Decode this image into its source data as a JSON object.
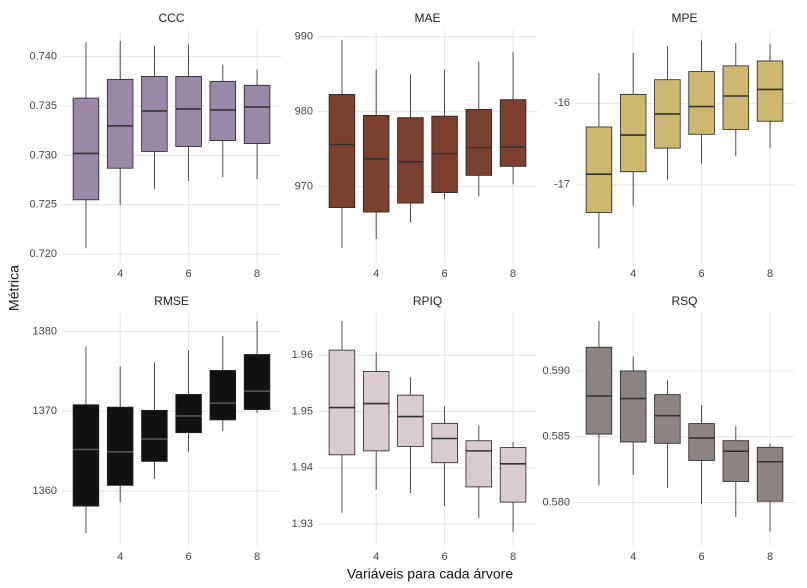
{
  "ylabel": "Métrica",
  "xlabel": "Variáveis para cada árvore",
  "chart_data": [
    {
      "type": "box",
      "title": "CCC",
      "x": [
        3,
        4,
        5,
        6,
        7,
        8
      ],
      "xlim": [
        2.3,
        8.7
      ],
      "xticks": [
        4,
        6,
        8
      ],
      "ylim": [
        0.7191,
        0.7427
      ],
      "yticks": [
        {
          "value": 0.72,
          "label": "0.720"
        },
        0.725,
        {
          "value": 0.73,
          "label": "0.730"
        },
        0.735,
        {
          "value": 0.74,
          "label": "0.740"
        }
      ],
      "color": "#9a88a8",
      "median_color": "#333333",
      "grid": true,
      "whisker_low": [
        0.7206,
        0.725,
        0.7266,
        0.7274,
        0.7278,
        0.7276
      ],
      "q1": [
        0.7255,
        0.7287,
        0.7304,
        0.7309,
        0.7315,
        0.7312
      ],
      "median": [
        0.7302,
        0.733,
        0.7345,
        0.7347,
        0.7346,
        0.7349
      ],
      "q3": [
        0.7358,
        0.7377,
        0.738,
        0.738,
        0.7375,
        0.7371
      ],
      "whisker_high": [
        0.7415,
        0.7416,
        0.7411,
        0.7412,
        0.7392,
        0.7387
      ]
    },
    {
      "type": "box",
      "title": "MAE",
      "x": [
        3,
        4,
        5,
        6,
        7,
        8
      ],
      "xlim": [
        2.3,
        8.7
      ],
      "xticks": [
        4,
        6,
        8
      ],
      "ylim": [
        959.8,
        990.9
      ],
      "yticks": [
        970,
        980,
        990
      ],
      "color": "#7b4030",
      "median_color": "#333333",
      "grid": true,
      "whisker_low": [
        961.8,
        963,
        965.2,
        968.3,
        968.7,
        970.3
      ],
      "q1": [
        967.2,
        966.6,
        967.8,
        969.2,
        971.5,
        972.7
      ],
      "median": [
        975.6,
        973.7,
        973.3,
        974.4,
        975.2,
        975.3
      ],
      "q3": [
        982.3,
        979.5,
        979.2,
        979.4,
        980.3,
        981.6
      ],
      "whisker_high": [
        989.6,
        985.6,
        985,
        985.6,
        986.7,
        988
      ]
    },
    {
      "type": "box",
      "title": "MPE",
      "x": [
        3,
        4,
        5,
        6,
        7,
        8
      ],
      "xlim": [
        2.3,
        8.7
      ],
      "xticks": [
        4,
        6,
        8
      ],
      "ylim": [
        -17.96,
        -15.1
      ],
      "yticks": [
        -17,
        -16
      ],
      "color": "#cdb870",
      "median_color": "#333333",
      "grid": true,
      "whisker_low": [
        -17.78,
        -17.26,
        -16.94,
        -16.74,
        -16.65,
        -16.55
      ],
      "q1": [
        -17.34,
        -16.84,
        -16.55,
        -16.38,
        -16.32,
        -16.22
      ],
      "median": [
        -16.87,
        -16.39,
        -16.13,
        -16.04,
        -15.91,
        -15.83
      ],
      "q3": [
        -16.29,
        -15.89,
        -15.71,
        -15.61,
        -15.54,
        -15.48
      ],
      "whisker_high": [
        -15.63,
        -15.38,
        -15.3,
        -15.23,
        -15.26,
        -15.27
      ]
    },
    {
      "type": "box",
      "title": "RMSE",
      "x": [
        3,
        4,
        5,
        6,
        7,
        8
      ],
      "xlim": [
        2.3,
        8.7
      ],
      "xticks": [
        4,
        6,
        8
      ],
      "ylim": [
        1353.1,
        1382.3
      ],
      "yticks": [
        1360,
        1370,
        1380
      ],
      "color": "#111111",
      "median_color": "#555555",
      "grid": true,
      "whisker_low": [
        1354.7,
        1358.6,
        1361.5,
        1364.9,
        1367.5,
        1369.8
      ],
      "q1": [
        1358.1,
        1360.7,
        1363.7,
        1367.3,
        1368.9,
        1370.2
      ],
      "median": [
        1365.2,
        1364.9,
        1366.5,
        1369.4,
        1371,
        1372.5
      ],
      "q3": [
        1370.8,
        1370.5,
        1370.1,
        1372.1,
        1375.1,
        1377.1
      ],
      "whisker_high": [
        1378.1,
        1375.6,
        1376.1,
        1377.6,
        1379.4,
        1381.3
      ]
    },
    {
      "type": "box",
      "title": "RPIQ",
      "x": [
        3,
        4,
        5,
        6,
        7,
        8
      ],
      "xlim": [
        2.3,
        8.7
      ],
      "xticks": [
        4,
        6,
        8
      ],
      "ylim": [
        1.9261,
        1.9675
      ],
      "yticks": [
        1.93,
        1.94,
        1.95,
        1.96
      ],
      "color": "#d8ccd0",
      "median_color": "#333333",
      "grid": true,
      "whisker_low": [
        1.932,
        1.9361,
        1.9355,
        1.9332,
        1.9311,
        1.9286
      ],
      "q1": [
        1.9423,
        1.943,
        1.9438,
        1.9409,
        1.9366,
        1.9339
      ],
      "median": [
        1.9507,
        1.9514,
        1.9491,
        1.9452,
        1.943,
        1.9407
      ],
      "q3": [
        1.9609,
        1.9571,
        1.9529,
        1.9479,
        1.9448,
        1.9436
      ],
      "whisker_high": [
        1.9661,
        1.9605,
        1.9561,
        1.9509,
        1.9475,
        1.9446
      ]
    },
    {
      "type": "box",
      "title": "RSQ",
      "x": [
        3,
        4,
        5,
        6,
        7,
        8
      ],
      "xlim": [
        2.3,
        8.7
      ],
      "xticks": [
        4,
        6,
        8
      ],
      "ylim": [
        0.5767,
        0.5944
      ],
      "yticks": [
        {
          "value": 0.58,
          "label": "0.580"
        },
        0.585,
        {
          "value": 0.59,
          "label": "0.590"
        }
      ],
      "color": "#8c8480",
      "median_color": "#333333",
      "grid": true,
      "whisker_low": [
        0.5813,
        0.5821,
        0.5811,
        0.5799,
        0.5789,
        0.5778
      ],
      "q1": [
        0.5852,
        0.5846,
        0.5845,
        0.5832,
        0.5816,
        0.5801
      ],
      "median": [
        0.5881,
        0.5879,
        0.5866,
        0.5849,
        0.5839,
        0.5831
      ],
      "q3": [
        0.5918,
        0.59,
        0.5882,
        0.586,
        0.5847,
        0.5842
      ],
      "whisker_high": [
        0.5938,
        0.5911,
        0.5893,
        0.5874,
        0.5858,
        0.5845
      ]
    }
  ]
}
